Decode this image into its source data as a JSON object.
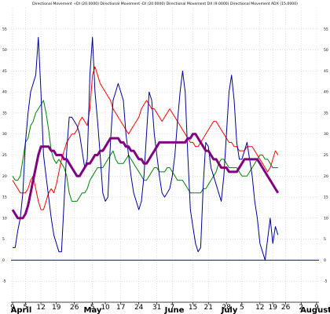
{
  "chart_data": {
    "type": "line",
    "title": "Directional Movement +DI (20.0000) Directional Movement -DI (20.0000) Directional Movement DX (9.0000) Directional Movement ADX (15.0000)",
    "xlabel": "",
    "ylabel": "",
    "ylim": [
      -10,
      60
    ],
    "yticks": [
      -5,
      0,
      5,
      10,
      15,
      20,
      25,
      30,
      35,
      40,
      45,
      50,
      55
    ],
    "grid": true,
    "legend": "none",
    "x_tick_labels": [
      "9",
      "5",
      "12",
      "19",
      "26",
      "5",
      "10",
      "17",
      "24",
      "31",
      "7",
      "15",
      "21",
      "28",
      "5",
      "12",
      "19",
      "26",
      "2",
      "9"
    ],
    "month_labels": [
      "April",
      "May",
      "June",
      "July",
      "August"
    ],
    "x": [
      0,
      1,
      2,
      3,
      4,
      5,
      6,
      7,
      8,
      9,
      10,
      11,
      12,
      13,
      14,
      15,
      16,
      17,
      18,
      19,
      20,
      21,
      22,
      23,
      24,
      25,
      26,
      27,
      28,
      29,
      30,
      31,
      32,
      33,
      34,
      35,
      36,
      37,
      38,
      39,
      40,
      41,
      42,
      43,
      44,
      45,
      46,
      47,
      48,
      49,
      50,
      51,
      52,
      53,
      54,
      55,
      56,
      57,
      58,
      59,
      60,
      61,
      62,
      63,
      64,
      65,
      66,
      67,
      68,
      69,
      70,
      71,
      72,
      73,
      74,
      75,
      76,
      77,
      78,
      79,
      80,
      81,
      82,
      83,
      84,
      85,
      86,
      87,
      88,
      89,
      90,
      91,
      92,
      93,
      94,
      95,
      96,
      97,
      98,
      99,
      100,
      101,
      102,
      103
    ],
    "series": [
      {
        "color": "#ff0000",
        "values": [
          19,
          18,
          17,
          16,
          16,
          16,
          17,
          19,
          20,
          17,
          14,
          12,
          12,
          14,
          16,
          17,
          16,
          18,
          21,
          24,
          26,
          28,
          29,
          30,
          30,
          31,
          33,
          34,
          33,
          32,
          36,
          44,
          46,
          44,
          42,
          41,
          40,
          39,
          38,
          36,
          35,
          34,
          33,
          32,
          31,
          30,
          31,
          32,
          33,
          34,
          36,
          37,
          38,
          37,
          36,
          36,
          35,
          34,
          33,
          34,
          35,
          36,
          35,
          34,
          33,
          32,
          31,
          30,
          29,
          28,
          28,
          27,
          27,
          28,
          29,
          30,
          31,
          32,
          33,
          33,
          32,
          31,
          30,
          29,
          28,
          28,
          27,
          27,
          26,
          26,
          26,
          27,
          27,
          27,
          26,
          25,
          24,
          23,
          22,
          21,
          22,
          24,
          26,
          25
        ]
      },
      {
        "color": "#008000",
        "values": [
          20,
          19,
          19,
          20,
          24,
          28,
          29,
          32,
          33,
          35,
          36,
          37,
          38,
          35,
          31,
          26,
          24,
          23,
          24,
          23,
          22,
          20,
          16,
          14,
          14,
          14,
          15,
          16,
          16,
          17,
          19,
          20,
          21,
          22,
          22,
          22,
          23,
          24,
          25,
          26,
          24,
          23,
          23,
          23,
          24,
          25,
          24,
          23,
          22,
          21,
          20,
          19,
          19,
          20,
          21,
          22,
          22,
          21,
          21,
          21,
          22,
          22,
          21,
          20,
          19,
          19,
          19,
          18,
          17,
          16,
          16,
          16,
          16,
          16,
          17,
          17,
          18,
          19,
          20,
          21,
          23,
          24,
          24,
          23,
          22,
          22,
          22,
          22,
          21,
          20,
          20,
          20,
          21,
          22,
          23,
          24,
          25,
          25,
          24,
          24,
          23,
          22,
          22,
          22
        ]
      },
      {
        "color": "#000099",
        "values": [
          3,
          3,
          7,
          10,
          16,
          28,
          35,
          40,
          42,
          44,
          53,
          40,
          25,
          20,
          15,
          10,
          6,
          4,
          2,
          2,
          14,
          26,
          34,
          34,
          33,
          32,
          30,
          26,
          22,
          24,
          44,
          53,
          40,
          33,
          25,
          16,
          14,
          15,
          28,
          38,
          40,
          42,
          40,
          38,
          30,
          25,
          20,
          16,
          14,
          12,
          14,
          20,
          30,
          40,
          38,
          30,
          25,
          20,
          16,
          15,
          16,
          17,
          20,
          25,
          33,
          40,
          45,
          40,
          25,
          12,
          8,
          4,
          2,
          3,
          18,
          28,
          27,
          22,
          20,
          18,
          16,
          14,
          20,
          30,
          40,
          44,
          38,
          28,
          24,
          24,
          26,
          28,
          24,
          20,
          14,
          10,
          4,
          2,
          0,
          5,
          10,
          4,
          8,
          6
        ]
      },
      {
        "color": "#800080",
        "values": [
          12,
          11,
          10,
          10,
          10,
          11,
          13,
          16,
          19,
          22,
          25,
          27,
          27,
          27,
          27,
          26,
          26,
          25,
          25,
          25,
          24,
          24,
          23,
          22,
          21,
          20,
          20,
          21,
          22,
          23,
          23,
          24,
          25,
          25,
          26,
          26,
          27,
          28,
          29,
          29,
          29,
          29,
          28,
          28,
          27,
          27,
          26,
          26,
          25,
          24,
          24,
          23,
          23,
          24,
          25,
          26,
          27,
          28,
          28,
          28,
          28,
          28,
          28,
          28,
          28,
          28,
          28,
          28,
          29,
          29,
          30,
          30,
          29,
          28,
          27,
          26,
          26,
          25,
          24,
          24,
          23,
          22,
          22,
          22,
          21,
          21,
          21,
          21,
          22,
          23,
          24,
          24,
          24,
          24,
          24,
          24,
          23,
          22,
          21,
          20,
          19,
          18,
          17,
          16
        ]
      }
    ]
  }
}
